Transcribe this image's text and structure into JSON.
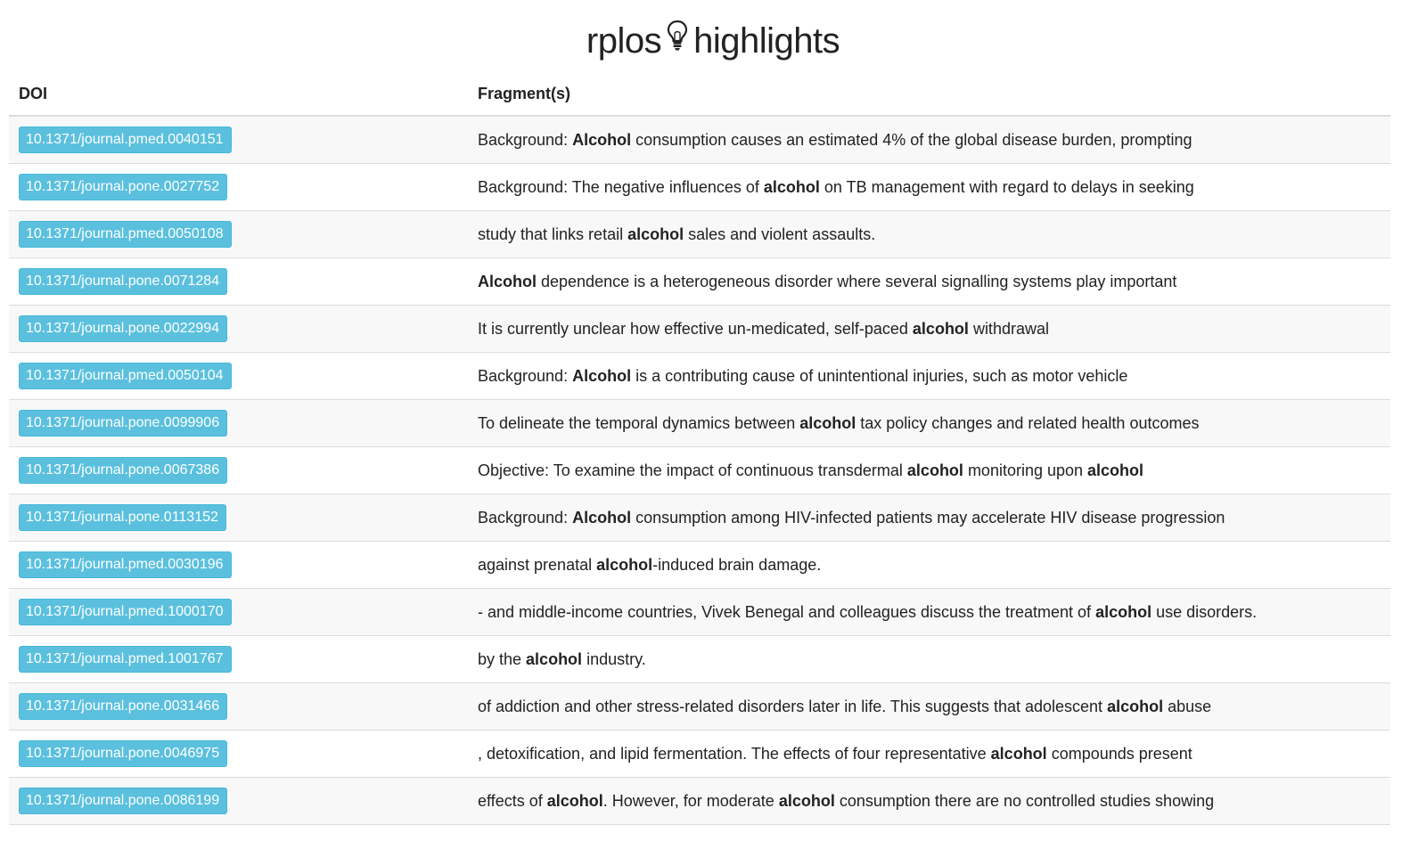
{
  "header": {
    "title_left": "rplos",
    "title_right": "highlights",
    "icon": "lightbulb-icon"
  },
  "table": {
    "columns": [
      "DOI",
      "Fragment(s)"
    ],
    "rows": [
      {
        "doi": "10.1371/journal.pmed.0040151",
        "fragment": [
          {
            "t": "Background: "
          },
          {
            "t": "Alcohol",
            "b": true
          },
          {
            "t": " consumption causes an estimated 4% of the global disease burden, prompting"
          }
        ]
      },
      {
        "doi": "10.1371/journal.pone.0027752",
        "fragment": [
          {
            "t": "Background: The negative influences of "
          },
          {
            "t": "alcohol",
            "b": true
          },
          {
            "t": " on TB management with regard to delays in seeking"
          }
        ]
      },
      {
        "doi": "10.1371/journal.pmed.0050108",
        "fragment": [
          {
            "t": "study that links retail "
          },
          {
            "t": "alcohol",
            "b": true
          },
          {
            "t": " sales and violent assaults."
          }
        ]
      },
      {
        "doi": "10.1371/journal.pone.0071284",
        "fragment": [
          {
            "t": "Alcohol",
            "b": true
          },
          {
            "t": " dependence is a heterogeneous disorder where several signalling systems play important"
          }
        ]
      },
      {
        "doi": "10.1371/journal.pone.0022994",
        "fragment": [
          {
            "t": "It is currently unclear how effective un-medicated, self-paced "
          },
          {
            "t": "alcohol",
            "b": true
          },
          {
            "t": " withdrawal"
          }
        ]
      },
      {
        "doi": "10.1371/journal.pmed.0050104",
        "fragment": [
          {
            "t": "Background: "
          },
          {
            "t": "Alcohol",
            "b": true
          },
          {
            "t": " is a contributing cause of unintentional injuries, such as motor vehicle"
          }
        ]
      },
      {
        "doi": "10.1371/journal.pone.0099906",
        "fragment": [
          {
            "t": "To delineate the temporal dynamics between "
          },
          {
            "t": "alcohol",
            "b": true
          },
          {
            "t": " tax policy changes and related health outcomes"
          }
        ]
      },
      {
        "doi": "10.1371/journal.pone.0067386",
        "fragment": [
          {
            "t": "Objective: To examine the impact of continuous transdermal "
          },
          {
            "t": "alcohol",
            "b": true
          },
          {
            "t": " monitoring upon "
          },
          {
            "t": "alcohol",
            "b": true
          }
        ]
      },
      {
        "doi": "10.1371/journal.pone.0113152",
        "fragment": [
          {
            "t": "Background: "
          },
          {
            "t": "Alcohol",
            "b": true
          },
          {
            "t": " consumption among HIV-infected patients may accelerate HIV disease progression"
          }
        ]
      },
      {
        "doi": "10.1371/journal.pmed.0030196",
        "fragment": [
          {
            "t": "against prenatal "
          },
          {
            "t": "alcohol",
            "b": true
          },
          {
            "t": "-induced brain damage."
          }
        ]
      },
      {
        "doi": "10.1371/journal.pmed.1000170",
        "fragment": [
          {
            "t": "- and middle-income countries, Vivek Benegal and colleagues discuss the treatment of "
          },
          {
            "t": "alcohol",
            "b": true
          },
          {
            "t": " use disorders."
          }
        ]
      },
      {
        "doi": "10.1371/journal.pmed.1001767",
        "fragment": [
          {
            "t": "by the "
          },
          {
            "t": "alcohol",
            "b": true
          },
          {
            "t": " industry."
          }
        ]
      },
      {
        "doi": "10.1371/journal.pone.0031466",
        "fragment": [
          {
            "t": "of addiction and other stress-related disorders later in life. This suggests that adolescent "
          },
          {
            "t": "alcohol",
            "b": true
          },
          {
            "t": " abuse"
          }
        ]
      },
      {
        "doi": "10.1371/journal.pone.0046975",
        "fragment": [
          {
            "t": ", detoxification, and lipid fermentation. The effects of four representative "
          },
          {
            "t": "alcohol",
            "b": true
          },
          {
            "t": " compounds present"
          }
        ]
      },
      {
        "doi": "10.1371/journal.pone.0086199",
        "fragment": [
          {
            "t": "effects of "
          },
          {
            "t": "alcohol",
            "b": true
          },
          {
            "t": ". However, for moderate "
          },
          {
            "t": "alcohol",
            "b": true
          },
          {
            "t": " consumption there are no controlled studies showing"
          }
        ]
      }
    ]
  },
  "colors": {
    "badge_bg": "#5bc0de",
    "badge_text": "#ffffff",
    "stripe": "#f8f8f8"
  }
}
